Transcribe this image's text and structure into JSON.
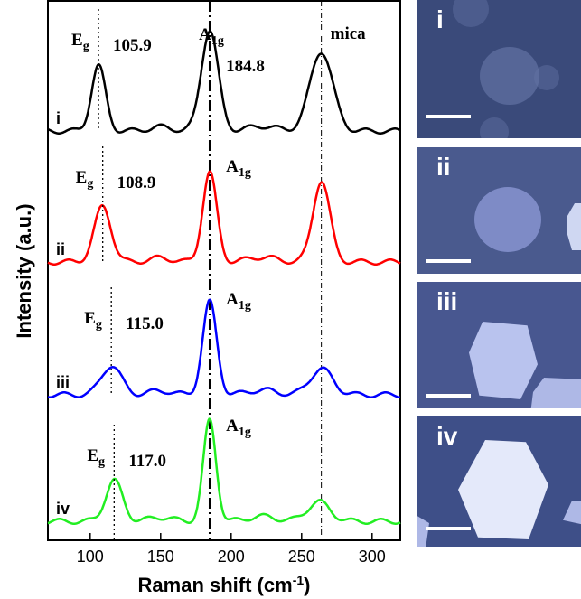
{
  "chart_data": {
    "type": "line",
    "xlabel_main": "Raman shift (cm",
    "xlabel_sup": "-1",
    "xlabel_end": ")",
    "ylabel": "Intensity (a.u.)",
    "xlim": [
      70,
      320
    ],
    "xticks": [
      100,
      150,
      200,
      250,
      300
    ],
    "series": [
      {
        "label": "i",
        "color": "#000000",
        "eg_value": "105.9",
        "eg_label": "E",
        "eg_sub": "g",
        "a1g_label": "A",
        "a1g_sub": "1g",
        "a1g_value": "184.8",
        "extra_label": "mica",
        "peaks": [
          {
            "x": 105.9,
            "h": 0.4,
            "w": 5
          },
          {
            "x": 184.8,
            "h": 0.62,
            "w": 6
          },
          {
            "x": 264,
            "h": 0.49,
            "w": 8
          }
        ],
        "baseline": 0.0
      },
      {
        "label": "ii",
        "color": "#ff0000",
        "eg_value": "108.9",
        "eg_label": "E",
        "eg_sub": "g",
        "a1g_label": "A",
        "a1g_sub": "1g",
        "peaks": [
          {
            "x": 108.9,
            "h": 0.34,
            "w": 6
          },
          {
            "x": 184.8,
            "h": 0.55,
            "w": 5
          },
          {
            "x": 264,
            "h": 0.5,
            "w": 6
          }
        ],
        "baseline": 0.0
      },
      {
        "label": "iii",
        "color": "#0000ff",
        "eg_value": "115.0",
        "eg_label": "E",
        "eg_sub": "g",
        "a1g_label": "A",
        "a1g_sub": "1g",
        "peaks": [
          {
            "x": 115.0,
            "h": 0.18,
            "w": 7
          },
          {
            "x": 184.8,
            "h": 0.57,
            "w": 5
          },
          {
            "x": 264,
            "h": 0.16,
            "w": 8
          }
        ],
        "baseline": 0.0
      },
      {
        "label": "iv",
        "color": "#22ee22",
        "eg_value": "117.0",
        "eg_label": "E",
        "eg_sub": "g",
        "a1g_label": "A",
        "a1g_sub": "1g",
        "peaks": [
          {
            "x": 117.0,
            "h": 0.25,
            "w": 6
          },
          {
            "x": 184.8,
            "h": 0.62,
            "w": 4.5
          },
          {
            "x": 262,
            "h": 0.12,
            "w": 8
          }
        ],
        "baseline": 0.0
      }
    ],
    "reference_lines": [
      184.8,
      264
    ]
  },
  "panels": [
    {
      "label": "i",
      "bg": "#3a4a7a"
    },
    {
      "label": "ii",
      "bg": "#4a5a8e"
    },
    {
      "label": "iii",
      "bg": "#485790"
    },
    {
      "label": "iv",
      "bg": "#3e4f88"
    }
  ]
}
